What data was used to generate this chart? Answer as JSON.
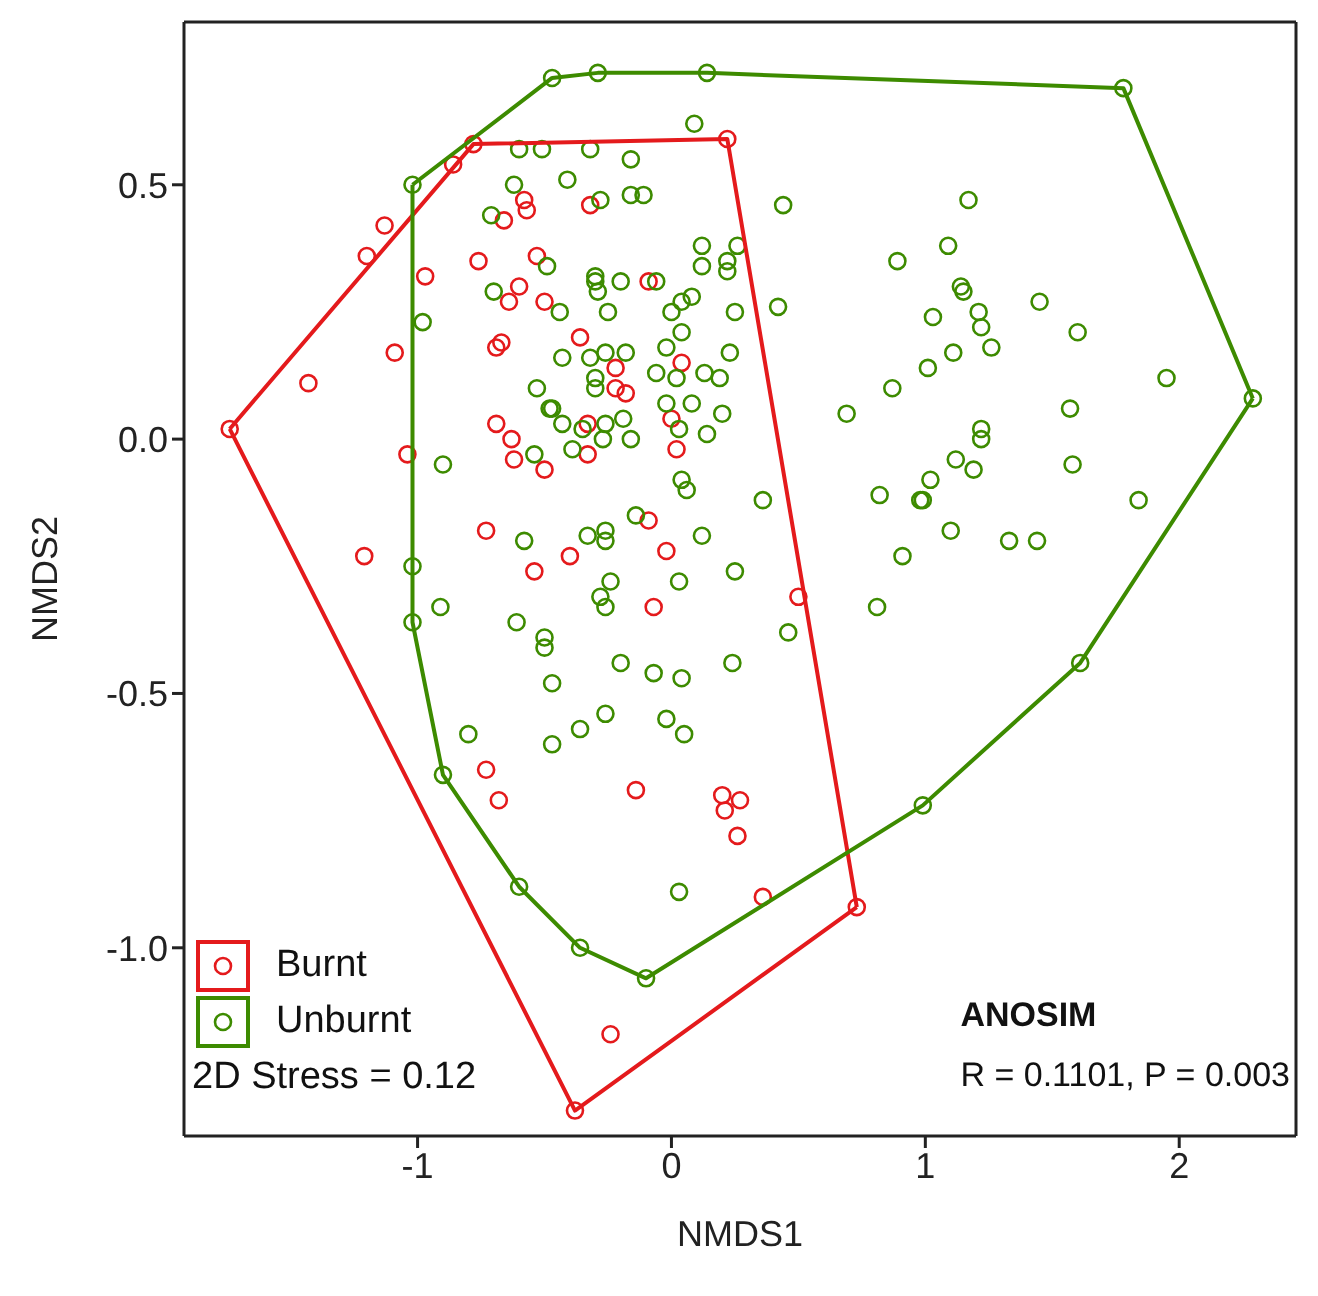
{
  "chart_data": {
    "type": "scatter",
    "xlabel": "NMDS1",
    "ylabel": "NMDS2",
    "xlim": [
      -1.92,
      2.46
    ],
    "ylim": [
      -1.37,
      0.82
    ],
    "xticks": [
      -1,
      0,
      1,
      2
    ],
    "yticks": [
      {
        "value": -1,
        "label": "-1.0"
      },
      {
        "value": -0.5,
        "label": "-0.5"
      },
      {
        "value": 0,
        "label": "0.0"
      },
      {
        "value": 0.5,
        "label": "0.5"
      }
    ],
    "grid": false,
    "legend": "bottom left",
    "marker": "circle",
    "annotations": [
      "2D Stress = 0.12",
      "ANOSIM",
      "R = 0.1101, P = 0.003"
    ],
    "series": [
      {
        "name": "Burnt",
        "color": "#e41a1c",
        "x": [
          -1.74,
          -1.43,
          -1.2,
          -1.13,
          -0.86,
          -0.78,
          -0.58,
          -0.57,
          -0.66,
          -0.97,
          -0.76,
          -0.53,
          -0.6,
          -0.64,
          -0.5,
          -0.67,
          -0.69,
          -1.09,
          -1.04,
          -0.69,
          -0.63,
          -0.62,
          -0.5,
          -0.73,
          -1.21,
          -0.54,
          0.22,
          -0.32,
          -0.09,
          -0.36,
          -0.22,
          0.04,
          -0.22,
          -0.18,
          -0.33,
          0,
          -0.33,
          0.02,
          -0.09,
          -0.02,
          -0.4,
          -0.73,
          -0.68,
          0.5,
          -0.07,
          -0.14,
          0.2,
          0.27,
          0.21,
          0.26,
          0.36,
          0.73,
          -0.24,
          -0.38
        ],
        "values": [
          0.02,
          0.11,
          0.36,
          0.42,
          0.54,
          0.58,
          0.47,
          0.45,
          0.43,
          0.32,
          0.35,
          0.36,
          0.3,
          0.27,
          0.27,
          0.19,
          0.18,
          0.17,
          -0.03,
          0.03,
          0,
          -0.04,
          -0.06,
          -0.18,
          -0.23,
          -0.26,
          0.59,
          0.46,
          0.31,
          0.2,
          0.14,
          0.15,
          0.1,
          0.09,
          0.03,
          0.04,
          -0.03,
          -0.02,
          -0.16,
          -0.22,
          -0.23,
          -0.65,
          -0.71,
          -0.31,
          -0.33,
          -0.69,
          -0.7,
          -0.71,
          -0.73,
          -0.78,
          -0.9,
          -0.92,
          -1.17,
          -1.32
        ]
      },
      {
        "name": "Unburnt",
        "color": "#3d8b00",
        "x": [
          -1.02,
          -0.47,
          -0.29,
          0.14,
          1.78,
          2.29,
          1.61,
          0.99,
          -0.1,
          -0.36,
          -0.6,
          -0.9,
          -1.02,
          -0.6,
          -0.51,
          -0.62,
          -0.71,
          -0.49,
          -0.7,
          -0.98,
          -0.53,
          -0.48,
          -0.54,
          -0.9,
          -0.58,
          -1.02,
          0.09,
          -0.32,
          -0.16,
          -0.41,
          -0.28,
          -0.16,
          -0.11,
          0.44,
          0.12,
          0.26,
          0.12,
          0.22,
          0.22,
          0.89,
          -0.3,
          -0.3,
          -0.2,
          -0.06,
          -0.29,
          -0.44,
          -0.25,
          0.08,
          0.04,
          0,
          0.25,
          0.42,
          0.04,
          -0.02,
          -0.43,
          -0.26,
          -0.18,
          -0.32,
          0.23,
          -0.06,
          0.02,
          0.13,
          0.19,
          -0.3,
          -0.3,
          0.08,
          -0.02,
          0.2,
          -0.47,
          -0.43,
          -0.35,
          -0.26,
          -0.19,
          0.03,
          0.14,
          -0.39,
          -0.27,
          -0.16,
          0.69,
          0.87,
          0.04,
          0.06,
          0.36,
          0.82,
          0.98,
          -0.14,
          -0.33,
          -0.26,
          -0.26,
          0.12,
          0.25,
          -0.24,
          0.03,
          0.91,
          1.17,
          1.09,
          1.14,
          1.15,
          1.03,
          1.21,
          1.22,
          1.45,
          1.6,
          1.26,
          1.11,
          1.01,
          1.95,
          1.57,
          1.22,
          1.22,
          1.12,
          1.19,
          1.58,
          1.02,
          0.99,
          1.84,
          1.1,
          1.33,
          1.44,
          -0.91,
          -0.61,
          -0.5,
          -0.5,
          -0.47,
          -0.8,
          -0.47,
          -0.28,
          -0.26,
          0.81,
          0.46,
          -0.2,
          -0.07,
          0.04,
          0.24,
          -0.26,
          -0.36,
          -0.02,
          0.05,
          0.03
        ],
        "values": [
          0.5,
          0.71,
          0.72,
          0.72,
          0.69,
          0.08,
          -0.44,
          -0.72,
          -1.06,
          -1,
          -0.88,
          -0.66,
          -0.36,
          0.57,
          0.57,
          0.5,
          0.44,
          0.34,
          0.29,
          0.23,
          0.1,
          0.06,
          -0.03,
          -0.05,
          -0.2,
          -0.25,
          0.62,
          0.57,
          0.55,
          0.51,
          0.47,
          0.48,
          0.48,
          0.46,
          0.38,
          0.38,
          0.34,
          0.35,
          0.33,
          0.35,
          0.32,
          0.31,
          0.31,
          0.31,
          0.29,
          0.25,
          0.25,
          0.28,
          0.27,
          0.25,
          0.25,
          0.26,
          0.21,
          0.18,
          0.16,
          0.17,
          0.17,
          0.16,
          0.17,
          0.13,
          0.12,
          0.13,
          0.12,
          0.12,
          0.1,
          0.07,
          0.07,
          0.05,
          0.06,
          0.03,
          0.02,
          0.03,
          0.04,
          0.02,
          0.01,
          -0.02,
          0,
          0,
          0.05,
          0.1,
          -0.08,
          -0.1,
          -0.12,
          -0.11,
          -0.12,
          -0.15,
          -0.19,
          -0.18,
          -0.2,
          -0.19,
          -0.26,
          -0.28,
          -0.28,
          -0.23,
          0.47,
          0.38,
          0.3,
          0.29,
          0.24,
          0.25,
          0.22,
          0.27,
          0.21,
          0.18,
          0.17,
          0.14,
          0.12,
          0.06,
          0.02,
          0,
          -0.04,
          -0.06,
          -0.05,
          -0.08,
          -0.12,
          -0.12,
          -0.18,
          -0.2,
          -0.2,
          -0.33,
          -0.36,
          -0.39,
          -0.41,
          -0.48,
          -0.58,
          -0.6,
          -0.31,
          -0.33,
          -0.33,
          -0.38,
          -0.44,
          -0.46,
          -0.47,
          -0.44,
          -0.54,
          -0.57,
          -0.55,
          -0.58,
          -0.89
        ]
      },
      {
        "type": "line",
        "marker": "none",
        "color": "#e41a1c",
        "x": [
          -1.74,
          -0.78,
          0.22,
          0.73
        ],
        "values": [
          0.02,
          0.58,
          0.59,
          -0.92
        ]
      },
      {
        "type": "line",
        "marker": "none",
        "color": "#e41a1c",
        "x": [
          -1.74,
          -0.38,
          0.73
        ],
        "values": [
          0.02,
          -1.32,
          -0.92
        ]
      },
      {
        "type": "line",
        "marker": "none",
        "color": "#3d8b00",
        "x": [
          -1.02,
          -0.47,
          -0.29,
          0.14,
          1.78,
          2.29
        ],
        "values": [
          0.5,
          0.71,
          0.72,
          0.72,
          0.69,
          0.08
        ]
      },
      {
        "type": "line",
        "marker": "none",
        "color": "#3d8b00",
        "x": [
          -1.02,
          -1.02,
          -0.9,
          -0.6,
          -0.36,
          -0.1,
          0.99,
          1.61,
          2.29
        ],
        "values": [
          0.5,
          -0.36,
          -0.66,
          -0.88,
          -1,
          -1.06,
          -0.72,
          -0.44,
          0.08
        ]
      }
    ]
  }
}
